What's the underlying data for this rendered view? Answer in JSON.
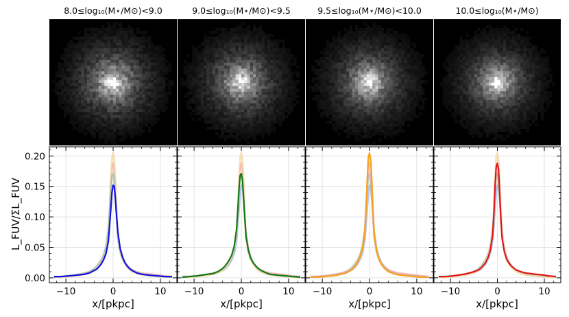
{
  "panel_titles": [
    "8.0≤log₁₀(M⋆/M⊙)<9.0",
    "9.0≤log₁₀(M⋆/M⊙)<9.5",
    "9.5≤log₁₀(M⋆/M⊙)<10.0",
    "10.0≤log₁₀(M⋆/M⊙)"
  ],
  "colors": {
    "bin1": "#1010e8",
    "bin2": "#137a13",
    "bin3": "#f6a21c",
    "bin4": "#e01515",
    "ghost_blue": "#9db3e3",
    "ghost_red": "#f4a6a6",
    "ghost_orange": "#f6d5a0",
    "ghost_green": "#9fbf9f"
  },
  "chart_data": {
    "type": "line",
    "ylabel": "L_FUV/ΣL_FUV",
    "xlabel": "x/[pkpc]",
    "xlim": [
      -13.5,
      13.5
    ],
    "ylim": [
      -0.008,
      0.215
    ],
    "xticks": [
      -10,
      0,
      10
    ],
    "xtick_labels": [
      "−10",
      "0",
      "10"
    ],
    "yticks": [
      0.0,
      0.05,
      0.1,
      0.15,
      0.2
    ],
    "ytick_labels": [
      "0.00",
      "0.05",
      "0.10",
      "0.15",
      "0.20"
    ],
    "x": [
      -12.5,
      -11,
      -9.5,
      -8,
      -7,
      -6,
      -5,
      -4,
      -3.5,
      -3,
      -2.5,
      -2,
      -1.5,
      -1,
      -0.75,
      -0.5,
      -0.25,
      0,
      0.25,
      0.5,
      0.75,
      1,
      1.5,
      2,
      2.5,
      3,
      3.5,
      4,
      5,
      6,
      7,
      8,
      9.5,
      11,
      12.5
    ],
    "series": [
      {
        "name": "8.0-9.0",
        "color": "#1010e8",
        "peak": 0.152,
        "values": [
          0.002,
          0.002,
          0.003,
          0.004,
          0.005,
          0.006,
          0.008,
          0.012,
          0.014,
          0.018,
          0.023,
          0.03,
          0.04,
          0.06,
          0.085,
          0.112,
          0.14,
          0.152,
          0.15,
          0.128,
          0.1,
          0.075,
          0.048,
          0.034,
          0.025,
          0.019,
          0.015,
          0.012,
          0.008,
          0.006,
          0.005,
          0.004,
          0.003,
          0.002,
          0.002
        ]
      },
      {
        "name": "9.0-9.5",
        "color": "#137a13",
        "peak": 0.171,
        "values": [
          0.001,
          0.002,
          0.003,
          0.005,
          0.006,
          0.007,
          0.01,
          0.015,
          0.019,
          0.024,
          0.03,
          0.038,
          0.052,
          0.08,
          0.11,
          0.145,
          0.168,
          0.171,
          0.16,
          0.13,
          0.095,
          0.068,
          0.045,
          0.032,
          0.025,
          0.02,
          0.016,
          0.013,
          0.009,
          0.006,
          0.005,
          0.004,
          0.003,
          0.002,
          0.001
        ]
      },
      {
        "name": "9.5-10.0",
        "color": "#f6a21c",
        "peak": 0.205,
        "values": [
          0.001,
          0.001,
          0.002,
          0.003,
          0.004,
          0.006,
          0.008,
          0.012,
          0.015,
          0.02,
          0.026,
          0.035,
          0.048,
          0.075,
          0.11,
          0.16,
          0.198,
          0.205,
          0.195,
          0.16,
          0.11,
          0.072,
          0.045,
          0.03,
          0.022,
          0.017,
          0.013,
          0.01,
          0.007,
          0.005,
          0.004,
          0.003,
          0.002,
          0.001,
          0.001
        ]
      },
      {
        "name": "10.0+",
        "color": "#e01515",
        "peak": 0.188,
        "values": [
          0.002,
          0.002,
          0.003,
          0.005,
          0.006,
          0.008,
          0.01,
          0.013,
          0.016,
          0.02,
          0.025,
          0.033,
          0.045,
          0.07,
          0.105,
          0.15,
          0.182,
          0.188,
          0.178,
          0.14,
          0.098,
          0.065,
          0.042,
          0.03,
          0.024,
          0.019,
          0.016,
          0.013,
          0.01,
          0.008,
          0.007,
          0.006,
          0.005,
          0.003,
          0.002
        ]
      }
    ]
  }
}
